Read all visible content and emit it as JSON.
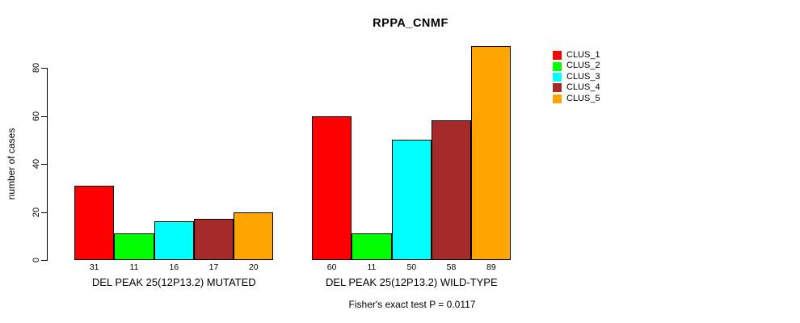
{
  "chart_data": {
    "type": "bar",
    "title": "RPPA_CNMF",
    "ylabel": "number of cases",
    "xlabel": "",
    "ylim": [
      0,
      89
    ],
    "yticks": [
      0,
      20,
      40,
      60,
      80
    ],
    "grid": false,
    "legend_position": "right",
    "categories": [
      "DEL PEAK 25(12P13.2) MUTATED",
      "DEL PEAK 25(12P13.2) WILD-TYPE"
    ],
    "series": [
      {
        "name": "CLUS_1",
        "color": "#FF0000",
        "values": [
          31,
          60
        ]
      },
      {
        "name": "CLUS_2",
        "color": "#00FF00",
        "values": [
          11,
          11
        ]
      },
      {
        "name": "CLUS_3",
        "color": "#00FFFF",
        "values": [
          16,
          50
        ]
      },
      {
        "name": "CLUS_4",
        "color": "#A52A2A",
        "values": [
          17,
          58
        ]
      },
      {
        "name": "CLUS_5",
        "color": "#FFA500",
        "values": [
          20,
          89
        ]
      }
    ],
    "bar_value_labels": [
      [
        31,
        11,
        16,
        17,
        20
      ],
      [
        60,
        11,
        50,
        58,
        89
      ]
    ],
    "annotation": "Fisher's exact test P = 0.0117"
  }
}
